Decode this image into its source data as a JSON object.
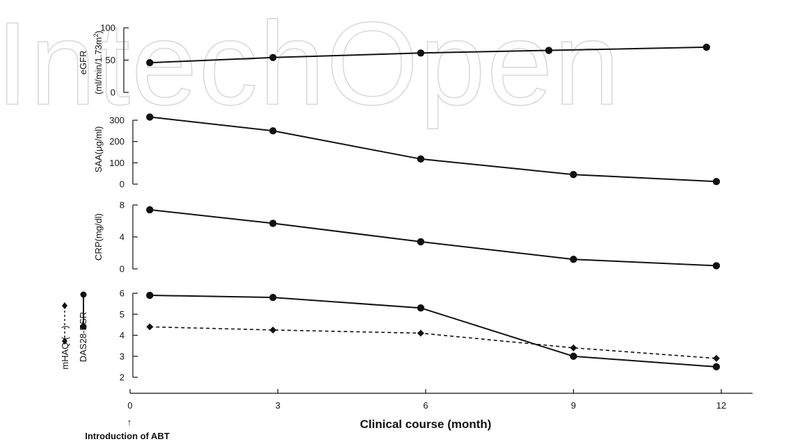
{
  "watermark": "IntechOpen",
  "chart_data": [
    {
      "type": "line",
      "ylabel": "eGFR",
      "ylabel_unit": "(ml/min/1.73m",
      "ylabel_unit_sup": "2",
      "ylabel_unit_end": ")",
      "ylim": [
        0,
        100
      ],
      "yticks": [
        0,
        50,
        100
      ],
      "series": [
        {
          "style": "solid",
          "marker": "circle",
          "x": [
            0.4,
            2.9,
            5.9,
            8.5,
            11.7
          ],
          "y": [
            46,
            54,
            61,
            65,
            70
          ]
        }
      ]
    },
    {
      "type": "line",
      "ylabel": "SAA(μg/ml)",
      "ylim": [
        0,
        300
      ],
      "yticks": [
        0,
        100,
        200,
        300
      ],
      "series": [
        {
          "style": "solid",
          "marker": "circle",
          "x": [
            0.4,
            2.9,
            5.9,
            9.0,
            11.9
          ],
          "y": [
            315,
            250,
            118,
            45,
            12
          ]
        }
      ]
    },
    {
      "type": "line",
      "ylabel": "CRP(mg/dl)",
      "ylim": [
        0,
        8
      ],
      "yticks": [
        0,
        4,
        8
      ],
      "series": [
        {
          "style": "solid",
          "marker": "circle",
          "x": [
            0.4,
            2.9,
            5.9,
            9.0,
            11.9
          ],
          "y": [
            7.4,
            5.7,
            3.4,
            1.2,
            0.4
          ]
        }
      ]
    },
    {
      "type": "line",
      "ylabel_left": "mHAQ (",
      "ylabel_left_end": ")",
      "ylabel_right": "DAS28-ESR",
      "ylim": [
        2,
        6
      ],
      "yticks": [
        2,
        3,
        4,
        5,
        6
      ],
      "series": [
        {
          "style": "solid",
          "marker": "circle",
          "x": [
            0.4,
            2.9,
            5.9,
            9.0,
            11.9
          ],
          "y": [
            5.9,
            5.8,
            5.3,
            3.0,
            2.5
          ]
        },
        {
          "style": "dashed",
          "marker": "diamond",
          "x": [
            0.4,
            2.9,
            5.9,
            9.0,
            11.9
          ],
          "y": [
            4.4,
            4.25,
            4.1,
            3.4,
            2.9
          ]
        }
      ],
      "xlim": [
        0,
        12
      ],
      "xticks": [
        0,
        3,
        6,
        9,
        12
      ],
      "xlabel": "Clinical course (month)"
    }
  ],
  "annotation": {
    "arrow": "↑",
    "text": "Introduction of ABT"
  }
}
